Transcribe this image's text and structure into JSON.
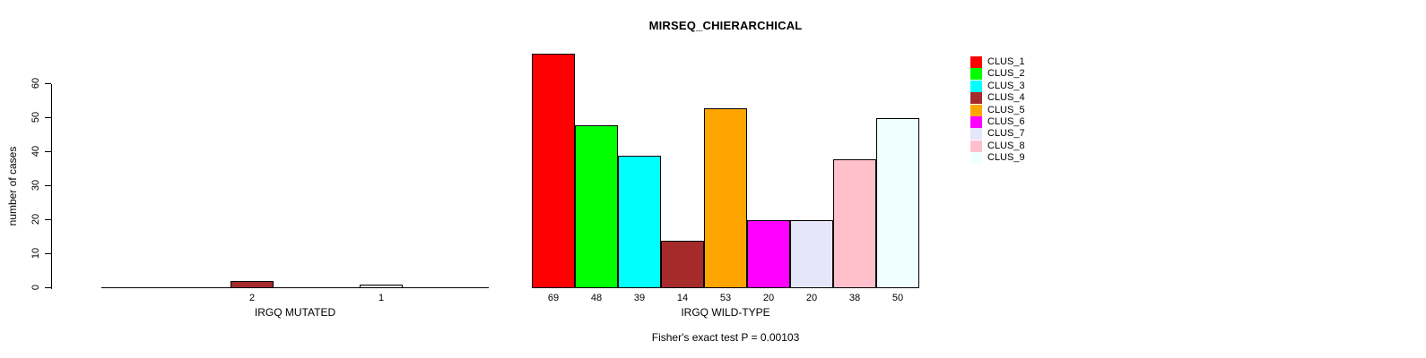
{
  "chart_data": {
    "type": "bar",
    "title": "MIRSEQ_CHIERARCHICAL",
    "ylabel": "number of cases",
    "ylim": [
      0,
      60
    ],
    "yticks": [
      0,
      10,
      20,
      30,
      40,
      50,
      60
    ],
    "grid": false,
    "legend_position": "right",
    "legend": [
      {
        "label": "CLUS_1",
        "color": "#FF0000"
      },
      {
        "label": "CLUS_2",
        "color": "#00FF00"
      },
      {
        "label": "CLUS_3",
        "color": "#00FFFF"
      },
      {
        "label": "CLUS_4",
        "color": "#A52A2A"
      },
      {
        "label": "CLUS_5",
        "color": "#FFA500"
      },
      {
        "label": "CLUS_6",
        "color": "#FF00FF"
      },
      {
        "label": "CLUS_7",
        "color": "#E6E6FA"
      },
      {
        "label": "CLUS_8",
        "color": "#FFC0CB"
      },
      {
        "label": "CLUS_9",
        "color": "#F0FFFF"
      }
    ],
    "categories": [
      "CLUS_1",
      "CLUS_2",
      "CLUS_3",
      "CLUS_4",
      "CLUS_5",
      "CLUS_6",
      "CLUS_7",
      "CLUS_8",
      "CLUS_9"
    ],
    "panels": [
      {
        "xlabel": "IRGQ MUTATED",
        "values": [
          0,
          0,
          0,
          2,
          0,
          0,
          1,
          0,
          0
        ],
        "shown_bar_labels": [
          "2",
          "1"
        ],
        "axis_line": true
      },
      {
        "xlabel": "IRGQ WILD-TYPE",
        "values": [
          69,
          48,
          39,
          14,
          53,
          20,
          20,
          38,
          50
        ],
        "shown_bar_labels": [
          "69",
          "48",
          "39",
          "14",
          "53",
          "20",
          "20",
          "38",
          "50"
        ],
        "axis_line": false
      }
    ],
    "caption": "Fisher's exact test P = 0.00103"
  }
}
